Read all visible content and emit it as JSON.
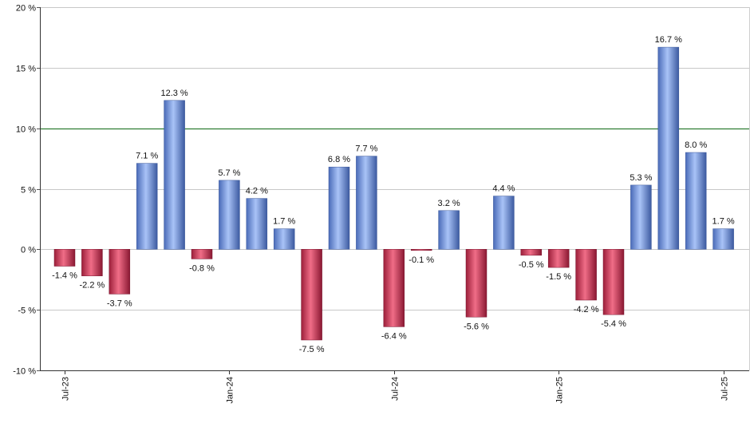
{
  "chart_data": {
    "type": "bar",
    "title": "",
    "xlabel": "",
    "ylabel": "",
    "ylim": [
      -10,
      20
    ],
    "y_ticks": [
      -10,
      -5,
      0,
      5,
      10,
      15,
      20
    ],
    "y_tick_labels": [
      "-10 %",
      "-5 %",
      "0 %",
      "5 %",
      "10 %",
      "15 %",
      "20 %"
    ],
    "x_tick_labels": [
      "Jul-23",
      "Jan-24",
      "Jul-24",
      "Jan-25",
      "Jul-25"
    ],
    "x_tick_indices": [
      0,
      6,
      12,
      18,
      24
    ],
    "reference_line": {
      "value": 10,
      "color": "#2e7d32"
    },
    "grid": true,
    "values": [
      -1.4,
      -2.2,
      -3.7,
      7.1,
      12.3,
      -0.8,
      5.7,
      4.2,
      1.7,
      -7.5,
      6.8,
      7.7,
      -6.4,
      -0.1,
      3.2,
      -5.6,
      4.4,
      -0.5,
      -1.5,
      -4.2,
      -5.4,
      5.3,
      16.7,
      8.0,
      1.7
    ],
    "data_labels": [
      "-1.4 %",
      "-2.2 %",
      "-3.7 %",
      "7.1 %",
      "12.3 %",
      "-0.8 %",
      "5.7 %",
      "4.2 %",
      "1.7 %",
      "-7.5 %",
      "6.8 %",
      "7.7 %",
      "-6.4 %",
      "-0.1 %",
      "3.2 %",
      "-5.6 %",
      "4.4 %",
      "-0.5 %",
      "-1.5 %",
      "-4.2 %",
      "-5.4 %",
      "5.3 %",
      "16.7 %",
      "8.0 %",
      "1.7 %"
    ],
    "colors": {
      "positive": "#7b9ee8",
      "negative": "#cc3a56"
    }
  }
}
